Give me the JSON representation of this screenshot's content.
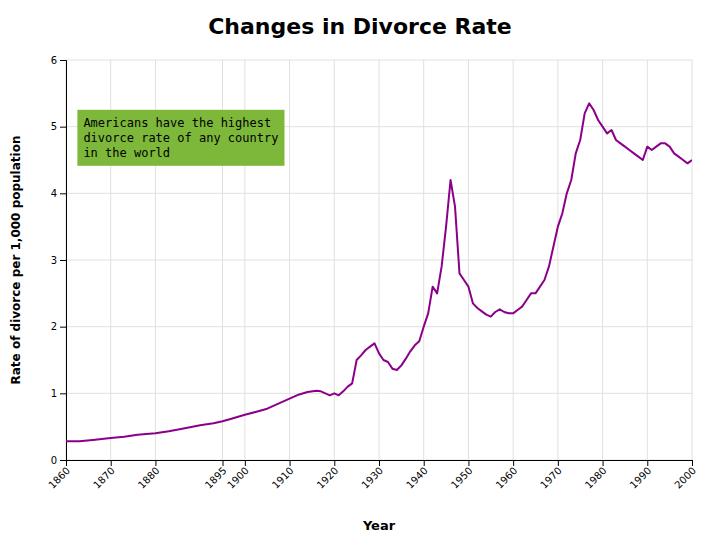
{
  "chart_data": {
    "type": "line",
    "title": "Changes in Divorce Rate",
    "x_label": "Year",
    "y_label": "Rate of divorce per 1,000 population",
    "annotation": "Americans have the highest\ndivorce rate of any country\nin the world",
    "color": "#8B008B",
    "grid": true,
    "xlim": [
      1860,
      2000
    ],
    "ylim": [
      0,
      6
    ],
    "xticks": [
      1860,
      1870,
      1880,
      1895,
      1900,
      1910,
      1920,
      1930,
      1940,
      1950,
      1960,
      1970,
      1980,
      1990,
      2000
    ],
    "yticks": [
      0,
      1,
      2,
      3,
      4,
      5,
      6
    ],
    "x": [
      1860,
      1863,
      1866,
      1870,
      1873,
      1876,
      1880,
      1883,
      1886,
      1890,
      1893,
      1895,
      1897,
      1900,
      1903,
      1905,
      1907,
      1910,
      1912,
      1914,
      1916,
      1917,
      1918,
      1919,
      1920,
      1921,
      1922,
      1923,
      1924,
      1925,
      1926,
      1927,
      1928,
      1929,
      1930,
      1931,
      1932,
      1933,
      1934,
      1935,
      1936,
      1937,
      1938,
      1939,
      1940,
      1941,
      1942,
      1943,
      1944,
      1945,
      1946,
      1947,
      1948,
      1949,
      1950,
      1951,
      1952,
      1953,
      1954,
      1955,
      1956,
      1957,
      1958,
      1959,
      1960,
      1961,
      1962,
      1963,
      1964,
      1965,
      1966,
      1967,
      1968,
      1969,
      1970,
      1971,
      1972,
      1973,
      1974,
      1975,
      1976,
      1977,
      1978,
      1979,
      1980,
      1981,
      1982,
      1983,
      1984,
      1985,
      1986,
      1987,
      1988,
      1989,
      1990,
      1991,
      1992,
      1993,
      1994,
      1995,
      1996,
      1997,
      1998,
      1999,
      2000
    ],
    "values": [
      0.28,
      0.28,
      0.3,
      0.33,
      0.35,
      0.38,
      0.4,
      0.43,
      0.47,
      0.52,
      0.55,
      0.58,
      0.62,
      0.68,
      0.73,
      0.77,
      0.83,
      0.92,
      0.98,
      1.02,
      1.04,
      1.03,
      1.0,
      0.97,
      1.0,
      0.97,
      1.03,
      1.1,
      1.15,
      1.5,
      1.57,
      1.65,
      1.7,
      1.75,
      1.6,
      1.5,
      1.47,
      1.37,
      1.35,
      1.42,
      1.52,
      1.63,
      1.72,
      1.78,
      2.0,
      2.2,
      2.6,
      2.5,
      2.9,
      3.5,
      4.2,
      3.8,
      2.8,
      2.7,
      2.6,
      2.35,
      2.28,
      2.23,
      2.18,
      2.15,
      2.22,
      2.26,
      2.22,
      2.2,
      2.2,
      2.25,
      2.3,
      2.4,
      2.5,
      2.5,
      2.6,
      2.7,
      2.9,
      3.2,
      3.5,
      3.7,
      4.0,
      4.2,
      4.6,
      4.8,
      5.2,
      5.35,
      5.25,
      5.1,
      5.0,
      4.9,
      4.95,
      4.8,
      4.75,
      4.7,
      4.65,
      4.6,
      4.55,
      4.5,
      4.7,
      4.65,
      4.7,
      4.75,
      4.75,
      4.7,
      4.6,
      4.55,
      4.5,
      4.45,
      4.5
    ]
  }
}
